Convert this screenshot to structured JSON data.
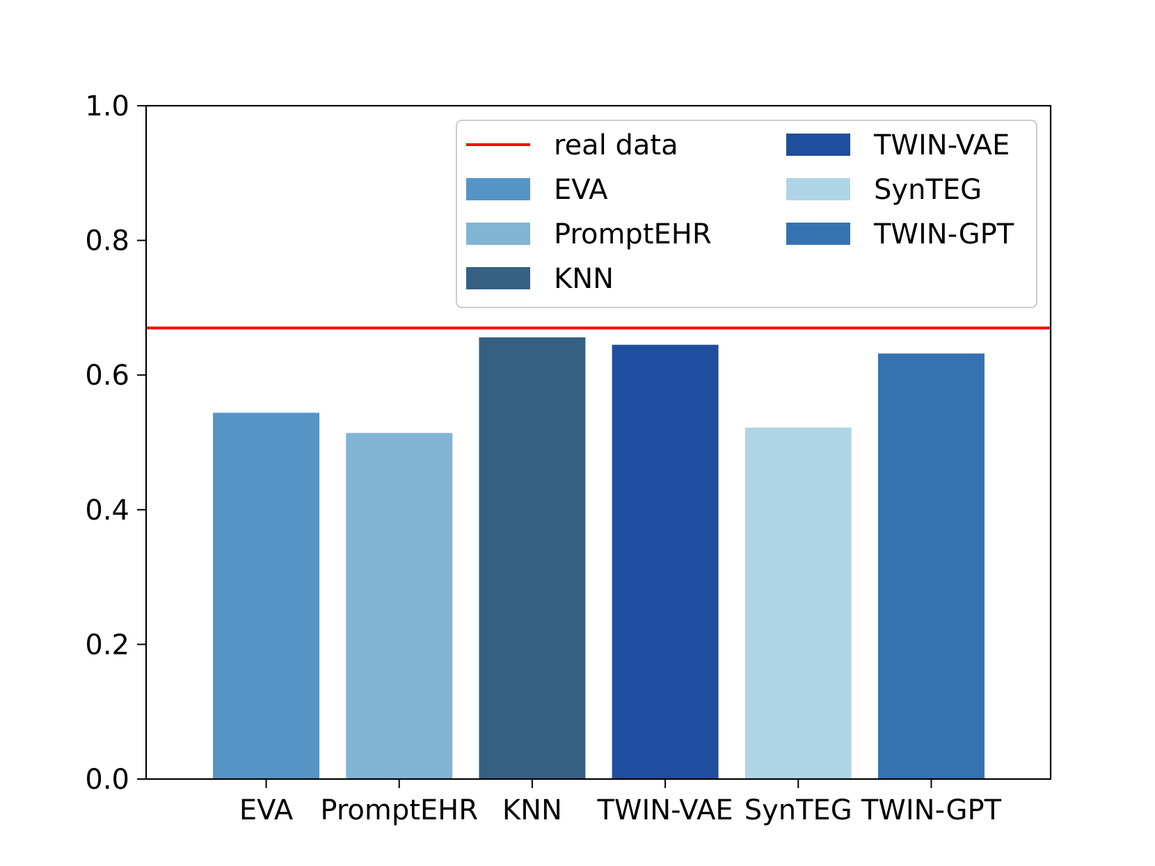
{
  "chart_data": {
    "type": "bar",
    "categories": [
      "EVA",
      "PromptEHR",
      "KNN",
      "TWIN-VAE",
      "SynTEG",
      "TWIN-GPT"
    ],
    "values": [
      0.544,
      0.514,
      0.656,
      0.645,
      0.522,
      0.632
    ],
    "colors": [
      "#5794c6",
      "#81b4d5",
      "#356083",
      "#1f4e9e",
      "#b0d5e6",
      "#3672b2"
    ],
    "reference_line": {
      "name": "real data",
      "value": 0.67,
      "color": "#ff0000"
    },
    "ylim": [
      0,
      1.0
    ],
    "yticks": [
      "0.0",
      "0.2",
      "0.4",
      "0.6",
      "0.8",
      "1.0"
    ],
    "title": "",
    "xlabel": "",
    "ylabel": "",
    "grid": false,
    "legend": {
      "placement": "top-right",
      "columns": 2,
      "entries": [
        "real data",
        "EVA",
        "PromptEHR",
        "KNN",
        "TWIN-VAE",
        "SynTEG",
        "TWIN-GPT"
      ]
    }
  }
}
